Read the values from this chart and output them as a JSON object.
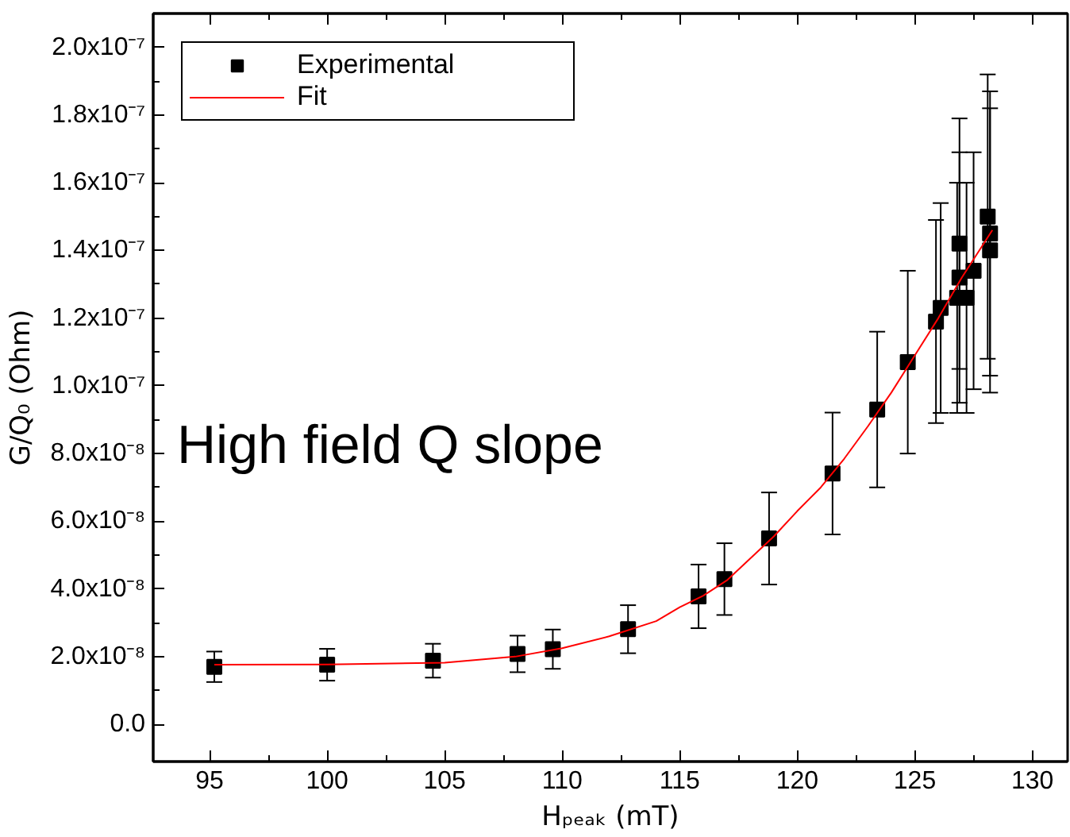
{
  "chart_data": {
    "type": "scatter",
    "xlabel": "Hₚₑₐₖ (mT)",
    "ylabel": "G/Q₀ (Ohm)",
    "annotations": [
      "High field Q slope"
    ],
    "xlim": [
      92.6,
      131.5
    ],
    "xticks": [
      95,
      100,
      105,
      110,
      115,
      120,
      125,
      130
    ],
    "ylim": [
      -1.1e-08,
      2.1e-07
    ],
    "yticks": [
      {
        "value": 0,
        "label": "0.0"
      },
      {
        "value": 2e-08,
        "label": "2.0x10⁻⁸"
      },
      {
        "value": 4e-08,
        "label": "4.0x10⁻⁸"
      },
      {
        "value": 6e-08,
        "label": "6.0x10⁻⁸"
      },
      {
        "value": 8e-08,
        "label": "8.0x10⁻⁸"
      },
      {
        "value": 1e-07,
        "label": "1.0x10⁻⁷"
      },
      {
        "value": 1.2e-07,
        "label": "1.2x10⁻⁷"
      },
      {
        "value": 1.4e-07,
        "label": "1.4x10⁻⁷"
      },
      {
        "value": 1.6e-07,
        "label": "1.6x10⁻⁷"
      },
      {
        "value": 1.8e-07,
        "label": "1.8x10⁻⁷"
      },
      {
        "value": 2e-07,
        "label": "2.0x10⁻⁷"
      }
    ],
    "legend": "top left",
    "grid": false,
    "series": [
      {
        "name": "Experimental",
        "marker": "square",
        "color": "#000000",
        "x": [
          95.2,
          100.0,
          104.5,
          108.1,
          109.6,
          112.8,
          115.8,
          116.9,
          118.8,
          121.5,
          123.4,
          124.7,
          125.9,
          126.1,
          126.9,
          126.9,
          126.8,
          127.2,
          127.5,
          128.1,
          128.2,
          128.2,
          128.1
        ],
        "values": [
          1.7e-08,
          1.76e-08,
          1.88e-08,
          2.08e-08,
          2.22e-08,
          2.81e-08,
          3.78e-08,
          4.29e-08,
          5.49e-08,
          7.41e-08,
          9.3e-08,
          1.07e-07,
          1.19e-07,
          1.23e-07,
          1.32e-07,
          1.42e-07,
          1.26e-07,
          1.26e-07,
          1.34e-07,
          null,
          1.45e-07,
          1.4e-07,
          1.5e-07
        ],
        "errors": [
          4.5e-09,
          4.7e-09,
          5e-09,
          5.4e-09,
          5.8e-09,
          7.1e-09,
          9.4e-09,
          1.06e-08,
          1.36e-08,
          1.8e-08,
          2.3e-08,
          2.7e-08,
          3e-08,
          3.1e-08,
          3.7e-08,
          3.7e-08,
          3.4e-08,
          3.4e-08,
          3.5e-08,
          null,
          4.2e-08,
          4.2e-08,
          4.2e-08
        ]
      },
      {
        "name": "Fit",
        "type": "line",
        "color": "#ff0000",
        "line_style": "solid",
        "x": [
          95.2,
          100,
          105,
          108,
          110,
          112,
          114,
          115,
          116,
          117,
          118,
          119,
          120,
          121,
          122,
          123,
          124,
          125,
          126,
          127,
          128.3
        ],
        "values": [
          1.76e-08,
          1.77e-08,
          1.82e-08,
          2e-08,
          2.25e-08,
          2.6e-08,
          3.05e-08,
          3.46e-08,
          3.8e-08,
          4.25e-08,
          4.9e-08,
          5.55e-08,
          6.3e-08,
          7e-08,
          7.85e-08,
          8.8e-08,
          9.8e-08,
          1.09e-07,
          1.2e-07,
          1.32e-07,
          1.46e-07
        ]
      }
    ]
  }
}
